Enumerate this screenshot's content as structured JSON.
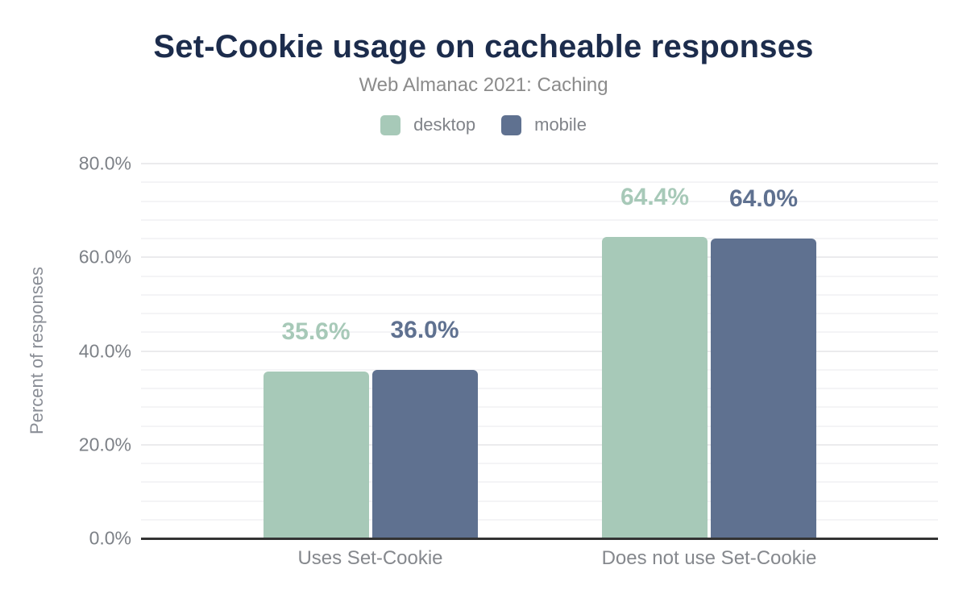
{
  "header": {
    "title": "Set-Cookie usage on cacheable responses",
    "subtitle": "Web Almanac 2021: Caching"
  },
  "colors": {
    "title": "#1c2c4c",
    "axis_line": "#333333",
    "gridline_major": "#ebebed",
    "gridline_minor": "#f4f4f6",
    "tick_text": "#7d8187",
    "desktop": "#a7c9b8",
    "mobile": "#5f7190"
  },
  "chart_data": {
    "type": "bar",
    "title": "Set-Cookie usage on cacheable responses",
    "subtitle": "Web Almanac 2021: Caching",
    "categories": [
      "Uses Set-Cookie",
      "Does not use Set-Cookie"
    ],
    "series": [
      {
        "name": "desktop",
        "color": "#a7c9b8",
        "values": [
          35.6,
          64.4
        ],
        "data_labels": [
          "35.6%",
          "64.4%"
        ]
      },
      {
        "name": "mobile",
        "color": "#5f7190",
        "values": [
          36.0,
          64.0
        ],
        "data_labels": [
          "36.0%",
          "64.0%"
        ]
      }
    ],
    "xlabel": "",
    "ylabel": "Percent of responses",
    "ylim": [
      0,
      80
    ],
    "yticks": [
      0,
      20,
      40,
      60,
      80
    ],
    "ytick_labels": [
      "0.0%",
      "20.0%",
      "40.0%",
      "60.0%",
      "80.0%"
    ],
    "minor_grid_step": 4,
    "grid": true,
    "legend_position": "top",
    "legend": [
      "desktop",
      "mobile"
    ]
  }
}
